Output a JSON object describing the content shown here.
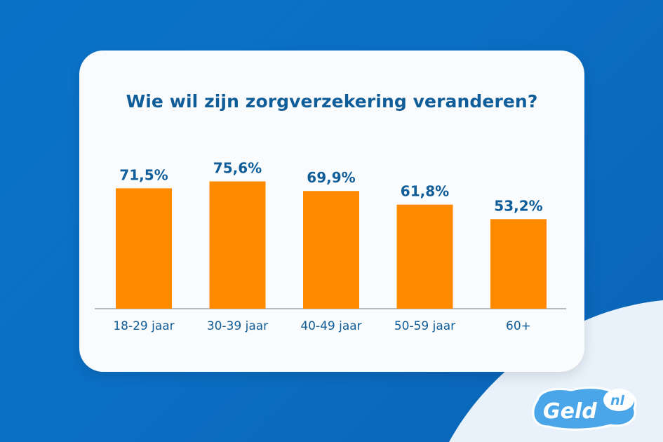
{
  "chart_data": {
    "type": "bar",
    "title": "Wie wil zijn zorgverzekering veranderen?",
    "categories": [
      "18-29 jaar",
      "30-39 jaar",
      "40-49 jaar",
      "50-59 jaar",
      "60+"
    ],
    "values": [
      71.5,
      75.6,
      69.9,
      61.8,
      53.2
    ],
    "value_labels": [
      "71,5%",
      "75,6%",
      "69,9%",
      "61,8%",
      "53,2%"
    ],
    "xlabel": "",
    "ylabel": "",
    "ylim": [
      0,
      100
    ],
    "grid": false,
    "bar_color": "#ff8a00",
    "label_color": "#0f5d99"
  },
  "colors": {
    "background": "#0a6ec4",
    "card": "#fafbfc",
    "accent_light": "#e6f0fa",
    "logo_badge": "#4aa6e8"
  },
  "logo": {
    "word": "Geld",
    "suffix": "nl"
  }
}
